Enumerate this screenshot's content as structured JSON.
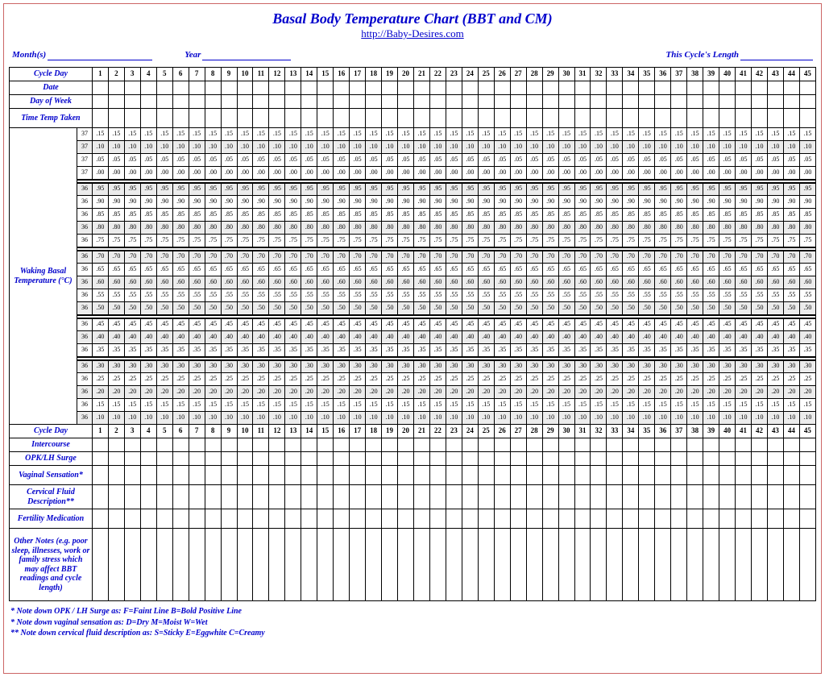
{
  "header": {
    "title": "Basal Body Temperature Chart (BBT and CM)",
    "url": "http://Baby-Desires.com",
    "month_label": "Month(s)",
    "year_label": "Year",
    "cyclelen_label": "This Cycle's Length"
  },
  "labels": {
    "cycle_day": "Cycle Day",
    "date": "Date",
    "day_of_week": "Day of Week",
    "time_temp": "Time Temp Taken",
    "temp_section": "Waking Basal Temperature (°C)",
    "intercourse": "Intercourse",
    "opk": "OPK/LH Surge",
    "vaginal": "Vaginal Sensation*",
    "cervical": "Cervical Fluid Description**",
    "fertility": "Fertility Medication",
    "other": "Other Notes (e.g. poor sleep, illnesses, work or family stress which may affect BBT readings and cycle length)"
  },
  "cycle_days": 45,
  "temp_grid": {
    "rows": [
      {
        "int": "37",
        "dec": ".15",
        "shade": false
      },
      {
        "int": "37",
        "dec": ".10",
        "shade": true
      },
      {
        "int": "37",
        "dec": ".05",
        "shade": false
      },
      {
        "int": "37",
        "dec": ".00",
        "shade": false
      },
      {
        "int": "",
        "dec": "",
        "shade": false,
        "blank": true
      },
      {
        "int": "36",
        "dec": ".95",
        "shade": true
      },
      {
        "int": "36",
        "dec": ".90",
        "shade": false
      },
      {
        "int": "36",
        "dec": ".85",
        "shade": false
      },
      {
        "int": "36",
        "dec": ".80",
        "shade": true
      },
      {
        "int": "36",
        "dec": ".75",
        "shade": false
      },
      {
        "int": "",
        "dec": "",
        "shade": false,
        "blank": true
      },
      {
        "int": "36",
        "dec": ".70",
        "shade": true
      },
      {
        "int": "36",
        "dec": ".65",
        "shade": false
      },
      {
        "int": "36",
        "dec": ".60",
        "shade": true
      },
      {
        "int": "36",
        "dec": ".55",
        "shade": false
      },
      {
        "int": "36",
        "dec": ".50",
        "shade": true
      },
      {
        "int": "",
        "dec": "",
        "shade": false,
        "blank": true
      },
      {
        "int": "36",
        "dec": ".45",
        "shade": false
      },
      {
        "int": "36",
        "dec": ".40",
        "shade": true
      },
      {
        "int": "36",
        "dec": ".35",
        "shade": false
      },
      {
        "int": "",
        "dec": "",
        "shade": false,
        "blank": true
      },
      {
        "int": "36",
        "dec": ".30",
        "shade": true
      },
      {
        "int": "36",
        "dec": ".25",
        "shade": false
      },
      {
        "int": "36",
        "dec": ".20",
        "shade": true
      },
      {
        "int": "36",
        "dec": ".15",
        "shade": false
      },
      {
        "int": "36",
        "dec": ".10",
        "shade": true
      }
    ]
  },
  "footnotes": {
    "n1": "* Note down OPK / LH Surge as:   F=Faint Line   B=Bold Positive Line",
    "n2": "* Note down vaginal sensation as:   D=Dry   M=Moist   W=Wet",
    "n3": "** Note down cervical fluid description as:   S=Sticky   E=Eggwhite   C=Creamy"
  },
  "colors": {
    "accent": "#0000cc",
    "border_outer": "#cc6666",
    "shade_bg": "#ececec",
    "grid": "#000000"
  },
  "typography": {
    "title_fontsize": 18,
    "label_fontsize": 10,
    "cell_fontsize": 8,
    "font_family": "Times New Roman"
  }
}
